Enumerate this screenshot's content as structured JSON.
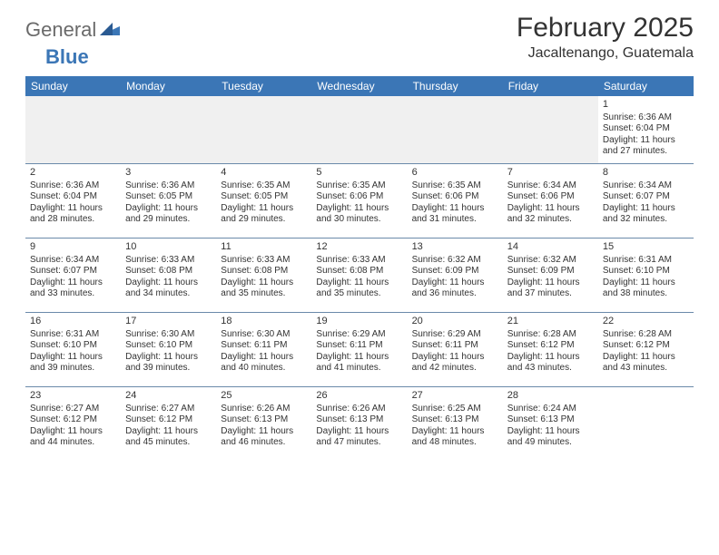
{
  "logo": {
    "part1": "General",
    "part2": "Blue"
  },
  "title": "February 2025",
  "subtitle": "Jacaltenango, Guatemala",
  "weekday_labels": [
    "Sunday",
    "Monday",
    "Tuesday",
    "Wednesday",
    "Thursday",
    "Friday",
    "Saturday"
  ],
  "colors": {
    "header_bg": "#3b76b6",
    "header_text": "#ffffff",
    "rule": "#6a8aaa",
    "logo_grey": "#6a6a6a",
    "logo_blue": "#3b76b6",
    "empty_bg": "#f0f0f0"
  },
  "weeks": [
    [
      null,
      null,
      null,
      null,
      null,
      null,
      {
        "n": "1",
        "sunrise": "Sunrise: 6:36 AM",
        "sunset": "Sunset: 6:04 PM",
        "daylight": "Daylight: 11 hours and 27 minutes."
      }
    ],
    [
      {
        "n": "2",
        "sunrise": "Sunrise: 6:36 AM",
        "sunset": "Sunset: 6:04 PM",
        "daylight": "Daylight: 11 hours and 28 minutes."
      },
      {
        "n": "3",
        "sunrise": "Sunrise: 6:36 AM",
        "sunset": "Sunset: 6:05 PM",
        "daylight": "Daylight: 11 hours and 29 minutes."
      },
      {
        "n": "4",
        "sunrise": "Sunrise: 6:35 AM",
        "sunset": "Sunset: 6:05 PM",
        "daylight": "Daylight: 11 hours and 29 minutes."
      },
      {
        "n": "5",
        "sunrise": "Sunrise: 6:35 AM",
        "sunset": "Sunset: 6:06 PM",
        "daylight": "Daylight: 11 hours and 30 minutes."
      },
      {
        "n": "6",
        "sunrise": "Sunrise: 6:35 AM",
        "sunset": "Sunset: 6:06 PM",
        "daylight": "Daylight: 11 hours and 31 minutes."
      },
      {
        "n": "7",
        "sunrise": "Sunrise: 6:34 AM",
        "sunset": "Sunset: 6:06 PM",
        "daylight": "Daylight: 11 hours and 32 minutes."
      },
      {
        "n": "8",
        "sunrise": "Sunrise: 6:34 AM",
        "sunset": "Sunset: 6:07 PM",
        "daylight": "Daylight: 11 hours and 32 minutes."
      }
    ],
    [
      {
        "n": "9",
        "sunrise": "Sunrise: 6:34 AM",
        "sunset": "Sunset: 6:07 PM",
        "daylight": "Daylight: 11 hours and 33 minutes."
      },
      {
        "n": "10",
        "sunrise": "Sunrise: 6:33 AM",
        "sunset": "Sunset: 6:08 PM",
        "daylight": "Daylight: 11 hours and 34 minutes."
      },
      {
        "n": "11",
        "sunrise": "Sunrise: 6:33 AM",
        "sunset": "Sunset: 6:08 PM",
        "daylight": "Daylight: 11 hours and 35 minutes."
      },
      {
        "n": "12",
        "sunrise": "Sunrise: 6:33 AM",
        "sunset": "Sunset: 6:08 PM",
        "daylight": "Daylight: 11 hours and 35 minutes."
      },
      {
        "n": "13",
        "sunrise": "Sunrise: 6:32 AM",
        "sunset": "Sunset: 6:09 PM",
        "daylight": "Daylight: 11 hours and 36 minutes."
      },
      {
        "n": "14",
        "sunrise": "Sunrise: 6:32 AM",
        "sunset": "Sunset: 6:09 PM",
        "daylight": "Daylight: 11 hours and 37 minutes."
      },
      {
        "n": "15",
        "sunrise": "Sunrise: 6:31 AM",
        "sunset": "Sunset: 6:10 PM",
        "daylight": "Daylight: 11 hours and 38 minutes."
      }
    ],
    [
      {
        "n": "16",
        "sunrise": "Sunrise: 6:31 AM",
        "sunset": "Sunset: 6:10 PM",
        "daylight": "Daylight: 11 hours and 39 minutes."
      },
      {
        "n": "17",
        "sunrise": "Sunrise: 6:30 AM",
        "sunset": "Sunset: 6:10 PM",
        "daylight": "Daylight: 11 hours and 39 minutes."
      },
      {
        "n": "18",
        "sunrise": "Sunrise: 6:30 AM",
        "sunset": "Sunset: 6:11 PM",
        "daylight": "Daylight: 11 hours and 40 minutes."
      },
      {
        "n": "19",
        "sunrise": "Sunrise: 6:29 AM",
        "sunset": "Sunset: 6:11 PM",
        "daylight": "Daylight: 11 hours and 41 minutes."
      },
      {
        "n": "20",
        "sunrise": "Sunrise: 6:29 AM",
        "sunset": "Sunset: 6:11 PM",
        "daylight": "Daylight: 11 hours and 42 minutes."
      },
      {
        "n": "21",
        "sunrise": "Sunrise: 6:28 AM",
        "sunset": "Sunset: 6:12 PM",
        "daylight": "Daylight: 11 hours and 43 minutes."
      },
      {
        "n": "22",
        "sunrise": "Sunrise: 6:28 AM",
        "sunset": "Sunset: 6:12 PM",
        "daylight": "Daylight: 11 hours and 43 minutes."
      }
    ],
    [
      {
        "n": "23",
        "sunrise": "Sunrise: 6:27 AM",
        "sunset": "Sunset: 6:12 PM",
        "daylight": "Daylight: 11 hours and 44 minutes."
      },
      {
        "n": "24",
        "sunrise": "Sunrise: 6:27 AM",
        "sunset": "Sunset: 6:12 PM",
        "daylight": "Daylight: 11 hours and 45 minutes."
      },
      {
        "n": "25",
        "sunrise": "Sunrise: 6:26 AM",
        "sunset": "Sunset: 6:13 PM",
        "daylight": "Daylight: 11 hours and 46 minutes."
      },
      {
        "n": "26",
        "sunrise": "Sunrise: 6:26 AM",
        "sunset": "Sunset: 6:13 PM",
        "daylight": "Daylight: 11 hours and 47 minutes."
      },
      {
        "n": "27",
        "sunrise": "Sunrise: 6:25 AM",
        "sunset": "Sunset: 6:13 PM",
        "daylight": "Daylight: 11 hours and 48 minutes."
      },
      {
        "n": "28",
        "sunrise": "Sunrise: 6:24 AM",
        "sunset": "Sunset: 6:13 PM",
        "daylight": "Daylight: 11 hours and 49 minutes."
      },
      null
    ]
  ]
}
